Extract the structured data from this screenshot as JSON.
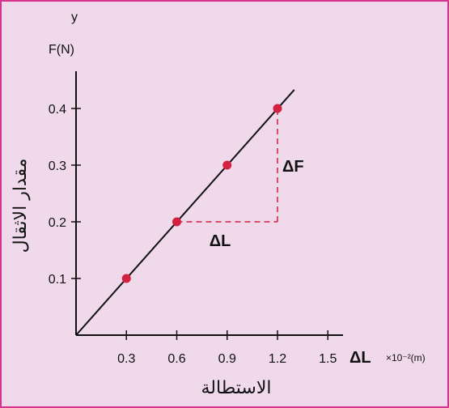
{
  "chart_data": {
    "type": "scatter",
    "y_letter": "y",
    "ylabel": "F(N)",
    "ylabel_arabic": "مقدار الاثقال",
    "xlabel": "ΔL",
    "xlabel_unit": "×10⁻²(m)",
    "xlabel_arabic": "الاستطالة",
    "xlim": [
      0,
      1.8
    ],
    "ylim": [
      0,
      0.45
    ],
    "x_ticks": [
      "0.3",
      "0.6",
      "0.9",
      "1.2",
      "1.5"
    ],
    "y_ticks": [
      "0.1",
      "0.2",
      "0.3",
      "0.4"
    ],
    "points": [
      {
        "x": 0.3,
        "y": 0.1
      },
      {
        "x": 0.6,
        "y": 0.2
      },
      {
        "x": 0.9,
        "y": 0.3
      },
      {
        "x": 1.2,
        "y": 0.4
      }
    ],
    "fit_line": {
      "from": [
        0,
        0
      ],
      "to": [
        1.3,
        0.433
      ]
    },
    "annotations": {
      "delta_f": "ΔF",
      "delta_l": "ΔL"
    },
    "colors": {
      "point": "#d4213f",
      "dash": "#d4213f",
      "line": "#111111"
    }
  }
}
